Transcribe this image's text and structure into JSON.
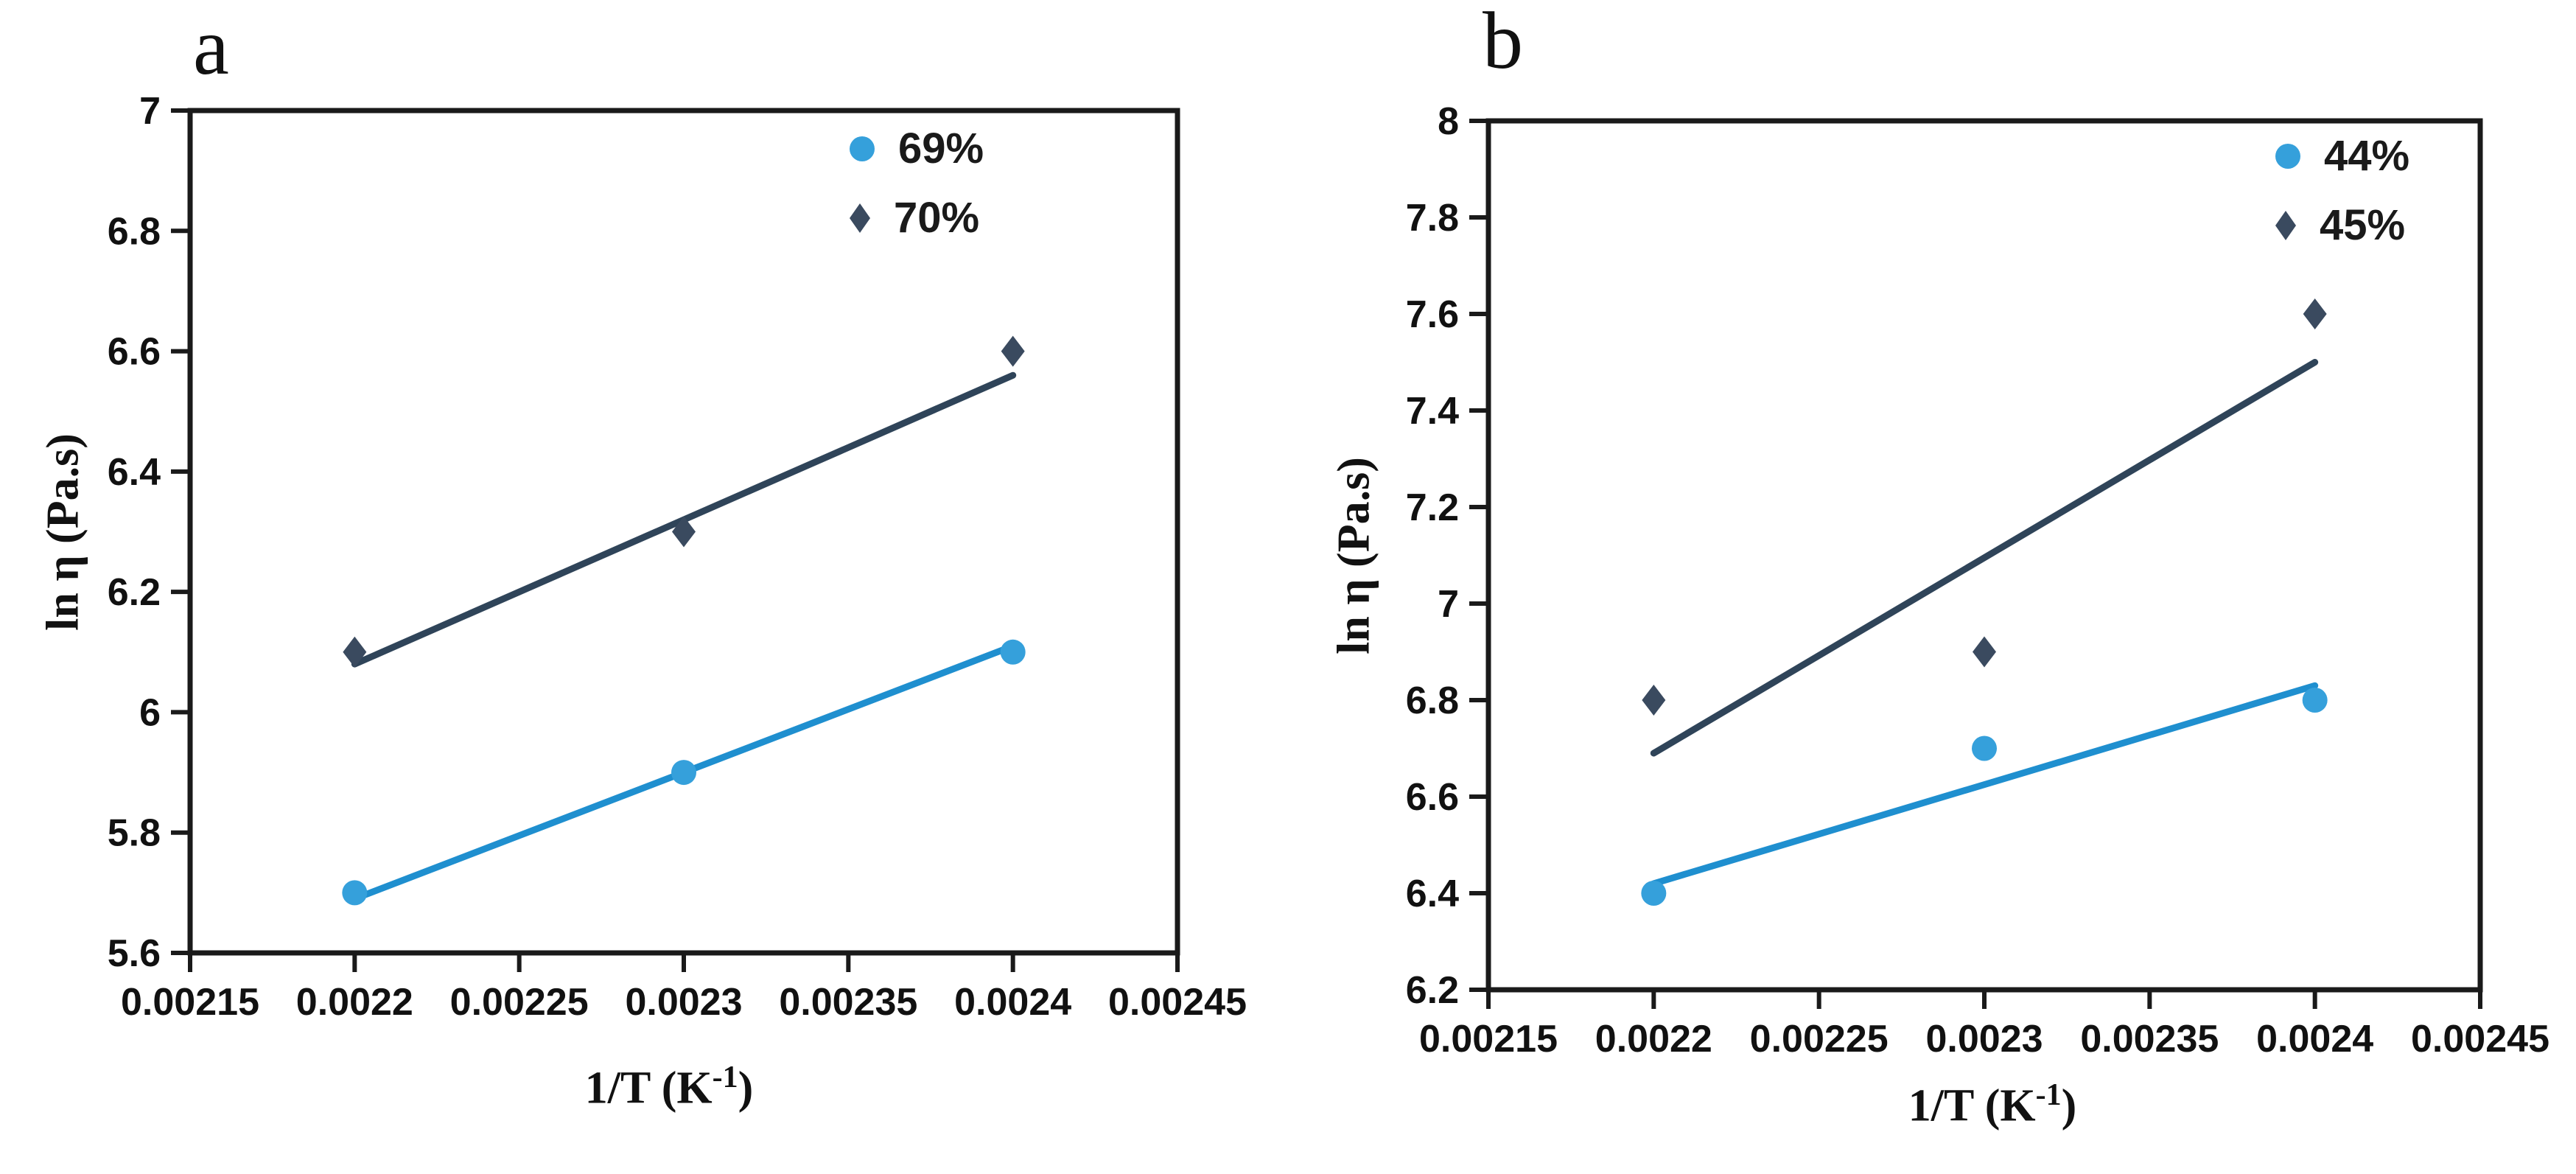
{
  "style": {
    "background": "#ffffff",
    "axis_color": "#1a1a1a",
    "blue_marker": "#35A0DB",
    "blue_line": "#1F8FCF",
    "navy_marker": "#3A4A5F",
    "navy_line": "#2F4459"
  },
  "chart_data": [
    {
      "type": "scatter",
      "panel_label": "a",
      "ylabel": "ln η (Pa.s)",
      "xlabel": {
        "base": "1/T (K",
        "sup": "-1",
        "end": ")"
      },
      "xlim": [
        0.00215,
        0.00245
      ],
      "ylim": [
        5.6,
        7
      ],
      "grid": false,
      "legend_position": "top-right",
      "xticks": [
        {
          "v": 0.00215,
          "label": "0.00215"
        },
        {
          "v": 0.0022,
          "label": "0.0022"
        },
        {
          "v": 0.00225,
          "label": "0.00225"
        },
        {
          "v": 0.0023,
          "label": "0.0023"
        },
        {
          "v": 0.00235,
          "label": "0.00235"
        },
        {
          "v": 0.0024,
          "label": "0.0024"
        },
        {
          "v": 0.00245,
          "label": "0.00245"
        }
      ],
      "yticks": [
        {
          "v": 7,
          "label": "7"
        },
        {
          "v": 6.8,
          "label": "6.8"
        },
        {
          "v": 6.6,
          "label": "6.6"
        },
        {
          "v": 6.4,
          "label": "6.4"
        },
        {
          "v": 6.2,
          "label": "6.2"
        },
        {
          "v": 6,
          "label": "6"
        },
        {
          "v": 5.8,
          "label": "5.8"
        },
        {
          "v": 5.6,
          "label": "5.6"
        }
      ],
      "series": [
        {
          "name": "69%",
          "marker": "circle",
          "marker_color": "#35A0DB",
          "line_color": "#1F8FCF",
          "points": [
            {
              "x": 0.0022,
              "y": 5.7
            },
            {
              "x": 0.0023,
              "y": 5.9
            },
            {
              "x": 0.0024,
              "y": 6.1
            }
          ],
          "trendline": {
            "x1": 0.0022,
            "y1": 5.69,
            "x2": 0.0024,
            "y2": 6.11
          }
        },
        {
          "name": "70%",
          "marker": "diamond",
          "marker_color": "#3A4A5F",
          "line_color": "#2F4459",
          "points": [
            {
              "x": 0.0022,
              "y": 6.1
            },
            {
              "x": 0.0023,
              "y": 6.3
            },
            {
              "x": 0.0024,
              "y": 6.6
            }
          ],
          "trendline": {
            "x1": 0.0022,
            "y1": 6.08,
            "x2": 0.0024,
            "y2": 6.56
          }
        }
      ]
    },
    {
      "type": "scatter",
      "panel_label": "b",
      "ylabel": "ln η (Pa.s)",
      "xlabel": {
        "base": "1/T (K",
        "sup": "-1",
        "end": ")"
      },
      "xlim": [
        0.00215,
        0.00245
      ],
      "ylim": [
        6.2,
        8
      ],
      "grid": false,
      "legend_position": "top-right",
      "xticks": [
        {
          "v": 0.00215,
          "label": "0.00215"
        },
        {
          "v": 0.0022,
          "label": "0.0022"
        },
        {
          "v": 0.00225,
          "label": "0.00225"
        },
        {
          "v": 0.0023,
          "label": "0.0023"
        },
        {
          "v": 0.00235,
          "label": "0.00235"
        },
        {
          "v": 0.0024,
          "label": "0.0024"
        },
        {
          "v": 0.00245,
          "label": "0.00245"
        }
      ],
      "yticks": [
        {
          "v": 8,
          "label": "8"
        },
        {
          "v": 7.8,
          "label": "7.8"
        },
        {
          "v": 7.6,
          "label": "7.6"
        },
        {
          "v": 7.4,
          "label": "7.4"
        },
        {
          "v": 7.2,
          "label": "7.2"
        },
        {
          "v": 7,
          "label": "7"
        },
        {
          "v": 6.8,
          "label": "6.8"
        },
        {
          "v": 6.6,
          "label": "6.6"
        },
        {
          "v": 6.4,
          "label": "6.4"
        },
        {
          "v": 6.2,
          "label": "6.2"
        }
      ],
      "series": [
        {
          "name": "44%",
          "marker": "circle",
          "marker_color": "#35A0DB",
          "line_color": "#1F8FCF",
          "points": [
            {
              "x": 0.0022,
              "y": 6.4
            },
            {
              "x": 0.0023,
              "y": 6.7
            },
            {
              "x": 0.0024,
              "y": 6.8
            }
          ],
          "trendline": {
            "x1": 0.0022,
            "y1": 6.42,
            "x2": 0.0024,
            "y2": 6.83
          }
        },
        {
          "name": "45%",
          "marker": "diamond",
          "marker_color": "#3A4A5F",
          "line_color": "#2F4459",
          "points": [
            {
              "x": 0.0022,
              "y": 6.8
            },
            {
              "x": 0.0023,
              "y": 6.9
            },
            {
              "x": 0.0024,
              "y": 7.6
            }
          ],
          "trendline": {
            "x1": 0.0022,
            "y1": 6.69,
            "x2": 0.0024,
            "y2": 7.5
          }
        }
      ]
    }
  ]
}
